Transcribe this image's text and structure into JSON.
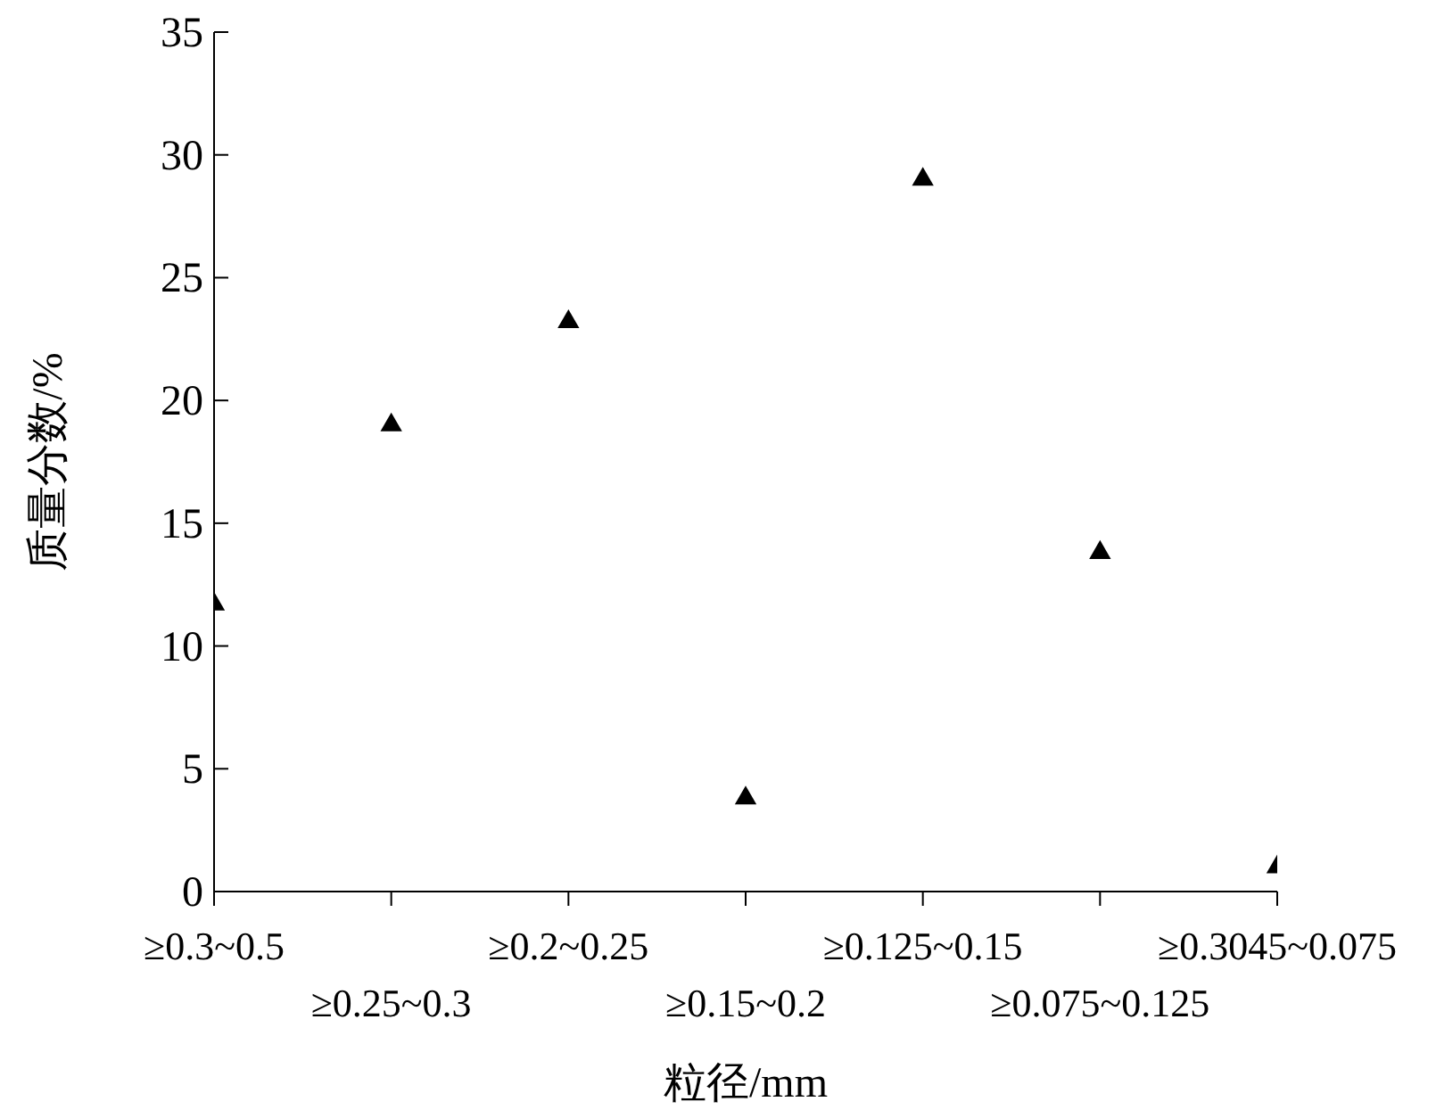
{
  "chart_data": {
    "type": "scatter",
    "xlabel": "粒径/mm",
    "ylabel": "质量分数/%",
    "categories": [
      "≥0.3~0.5",
      "≥0.25~0.3",
      "≥0.2~0.25",
      "≥0.15~0.2",
      "≥0.125~0.15",
      "≥0.075~0.125",
      "≥0.3045~0.075"
    ],
    "values": [
      11.7,
      19.0,
      23.2,
      3.8,
      29.0,
      13.8,
      1.0
    ],
    "color": "#000000",
    "marker": "triangle",
    "ylim": [
      0,
      35
    ],
    "yticks": [
      0,
      5,
      10,
      15,
      20,
      25,
      30,
      35
    ],
    "grid": false,
    "legend": false
  }
}
